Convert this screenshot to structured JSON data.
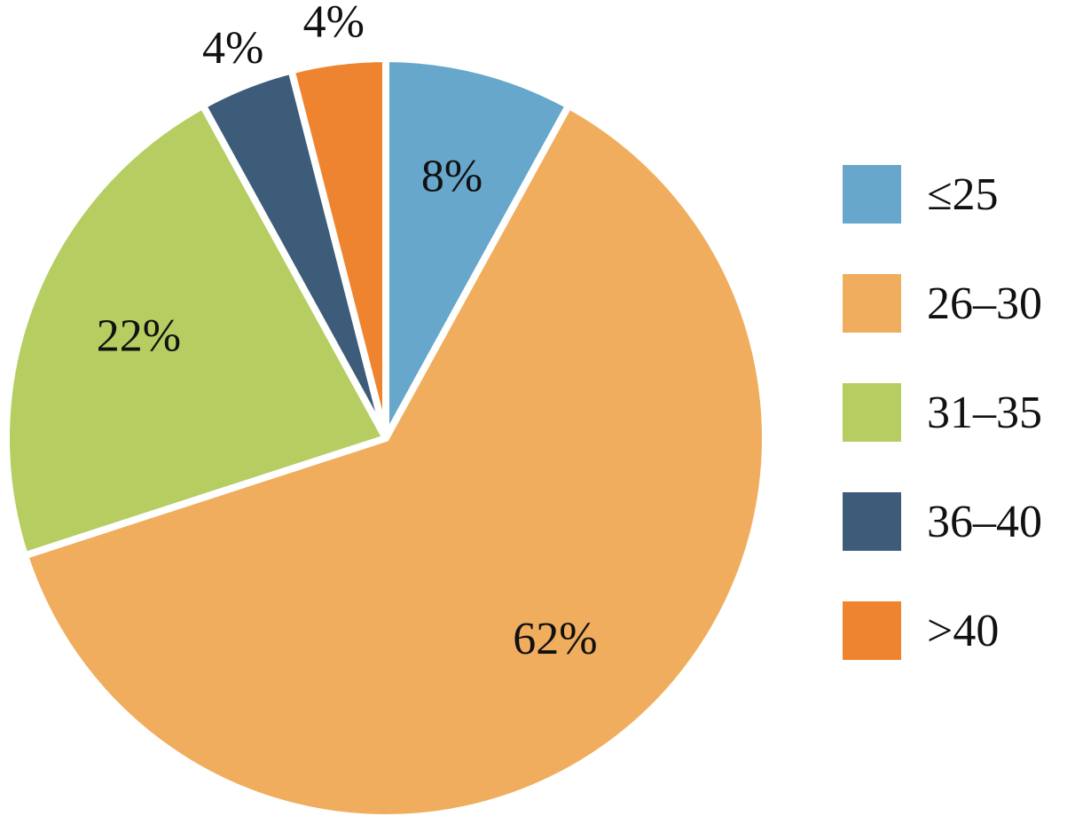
{
  "chart_data": {
    "type": "pie",
    "categories": [
      "≤25",
      "26–30",
      "31–35",
      "36–40",
      ">40"
    ],
    "values": [
      8,
      62,
      22,
      4,
      4
    ],
    "value_labels": [
      "8%",
      "62%",
      "22%",
      "4%",
      "4%"
    ],
    "colors": [
      "#67a7cb",
      "#f0ad5e",
      "#b5cd61",
      "#3c5c7a",
      "#ee842f"
    ],
    "legend": "right"
  }
}
